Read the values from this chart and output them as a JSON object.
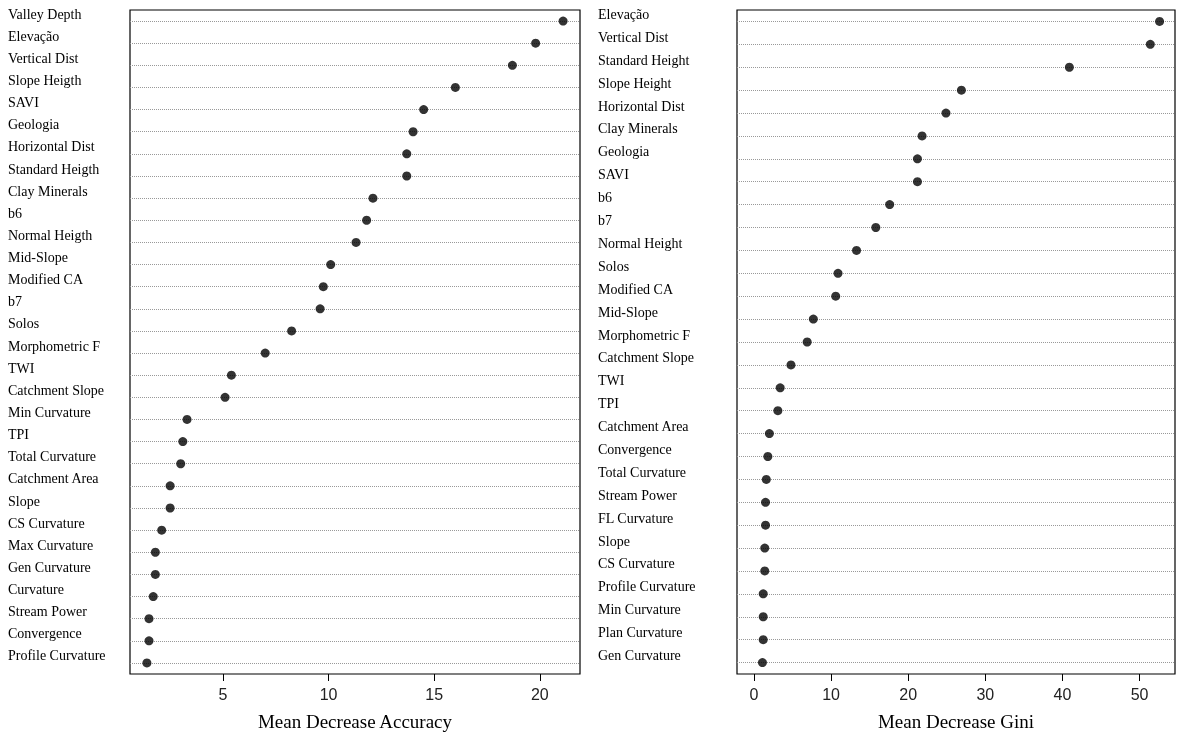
{
  "chart_data": [
    {
      "type": "scatter",
      "orientation": "horizontal",
      "xlabel": "Mean Decrease Accuracy",
      "color": "#000000",
      "marker": "circle",
      "grid": "y",
      "categories": [
        "Valley Depth",
        "Elevação",
        "Vertical Dist",
        "Slope Heigth",
        "SAVI",
        "Geologia",
        "Horizontal Dist",
        "Standard Heigth",
        "Clay Minerals",
        "b6",
        "Normal Heigth",
        "Mid-Slope",
        "Modified CA",
        "b7",
        "Solos",
        "Morphometric F",
        "TWI",
        "Catchment Slope",
        "Min Curvature",
        "TPI",
        "Total Curvature",
        "Catchment Area",
        "Slope",
        "CS Curvature",
        "Max Curvature",
        "Gen Curvature",
        "Curvature",
        "Stream Power",
        "Convergence",
        "Profile Curvature"
      ],
      "values": [
        21.1,
        19.8,
        18.7,
        16.0,
        14.5,
        14.0,
        13.7,
        13.7,
        12.1,
        11.8,
        11.3,
        10.1,
        9.75,
        9.6,
        8.25,
        7.0,
        5.4,
        5.1,
        3.3,
        3.1,
        3.0,
        2.5,
        2.5,
        2.1,
        1.8,
        1.8,
        1.7,
        1.5,
        1.5,
        1.4
      ],
      "xlim": [
        0.6,
        21.9
      ],
      "xticks": [
        5,
        10,
        15,
        20
      ]
    },
    {
      "type": "scatter",
      "orientation": "horizontal",
      "xlabel": "Mean Decrease Gini",
      "color": "#000000",
      "marker": "circle",
      "grid": "y",
      "categories": [
        "Elevação",
        "Vertical Dist",
        "Standard Height",
        "Slope Height",
        "Horizontal Dist",
        "Clay Minerals",
        "Geologia",
        "SAVI",
        "b6",
        "b7",
        "Normal Height",
        "Solos",
        "Modified CA",
        "Mid-Slope",
        "Morphometric F",
        "Catchment Slope",
        "TWI",
        "TPI",
        "Catchment Area",
        "Convergence",
        "Total Curvature",
        "Stream Power",
        "FL Curvature",
        "Slope",
        "CS Curvature",
        "Profile Curvature",
        "Min Curvature",
        "Plan Curvature",
        "Gen Curvature"
      ],
      "values": [
        52.6,
        51.4,
        40.9,
        26.9,
        24.9,
        21.8,
        21.2,
        21.2,
        17.6,
        15.8,
        13.3,
        10.9,
        10.6,
        7.7,
        6.9,
        4.8,
        3.4,
        3.1,
        2.0,
        1.8,
        1.6,
        1.5,
        1.5,
        1.4,
        1.4,
        1.2,
        1.2,
        1.2,
        1.1
      ],
      "xlim": [
        -2.2,
        54.6
      ],
      "xticks": [
        0,
        10,
        20,
        30,
        40,
        50
      ]
    }
  ]
}
